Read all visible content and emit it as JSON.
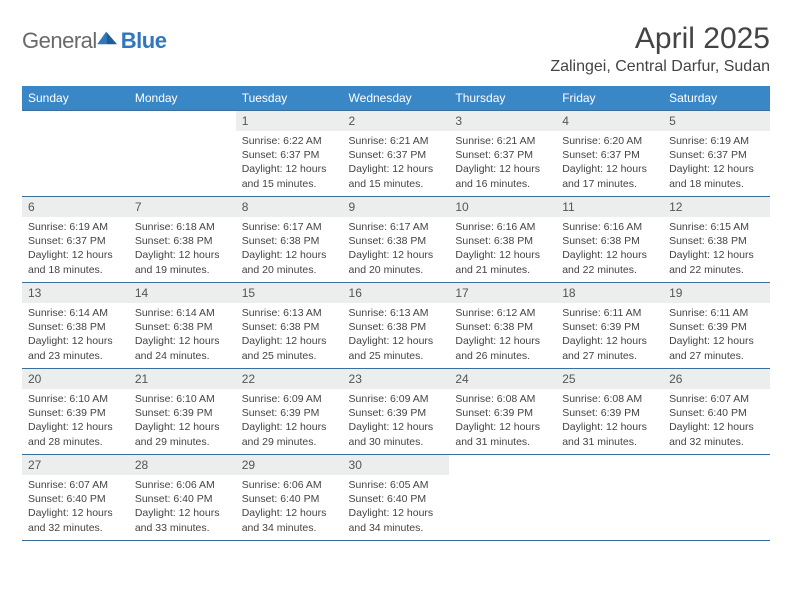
{
  "brand": {
    "word1": "General",
    "word2": "Blue"
  },
  "title": "April 2025",
  "location": "Zalingei, Central Darfur, Sudan",
  "colors": {
    "header_bg": "#3a87c8",
    "header_text": "#ffffff",
    "rule": "#3a6e9c",
    "daynum_bg": "#eceded",
    "body_text": "#444444",
    "logo_gray": "#6a6a6a",
    "logo_blue": "#2f78bd",
    "page_bg": "#ffffff"
  },
  "typography": {
    "title_fontsize": 30,
    "location_fontsize": 16,
    "dow_fontsize": 12,
    "daynum_fontsize": 12,
    "body_fontsize": 10.5
  },
  "days_of_week": [
    "Sunday",
    "Monday",
    "Tuesday",
    "Wednesday",
    "Thursday",
    "Friday",
    "Saturday"
  ],
  "weeks": [
    [
      null,
      null,
      {
        "n": "1",
        "sr": "6:22 AM",
        "ss": "6:37 PM",
        "dl": "12 hours and 15 minutes."
      },
      {
        "n": "2",
        "sr": "6:21 AM",
        "ss": "6:37 PM",
        "dl": "12 hours and 15 minutes."
      },
      {
        "n": "3",
        "sr": "6:21 AM",
        "ss": "6:37 PM",
        "dl": "12 hours and 16 minutes."
      },
      {
        "n": "4",
        "sr": "6:20 AM",
        "ss": "6:37 PM",
        "dl": "12 hours and 17 minutes."
      },
      {
        "n": "5",
        "sr": "6:19 AM",
        "ss": "6:37 PM",
        "dl": "12 hours and 18 minutes."
      }
    ],
    [
      {
        "n": "6",
        "sr": "6:19 AM",
        "ss": "6:37 PM",
        "dl": "12 hours and 18 minutes."
      },
      {
        "n": "7",
        "sr": "6:18 AM",
        "ss": "6:38 PM",
        "dl": "12 hours and 19 minutes."
      },
      {
        "n": "8",
        "sr": "6:17 AM",
        "ss": "6:38 PM",
        "dl": "12 hours and 20 minutes."
      },
      {
        "n": "9",
        "sr": "6:17 AM",
        "ss": "6:38 PM",
        "dl": "12 hours and 20 minutes."
      },
      {
        "n": "10",
        "sr": "6:16 AM",
        "ss": "6:38 PM",
        "dl": "12 hours and 21 minutes."
      },
      {
        "n": "11",
        "sr": "6:16 AM",
        "ss": "6:38 PM",
        "dl": "12 hours and 22 minutes."
      },
      {
        "n": "12",
        "sr": "6:15 AM",
        "ss": "6:38 PM",
        "dl": "12 hours and 22 minutes."
      }
    ],
    [
      {
        "n": "13",
        "sr": "6:14 AM",
        "ss": "6:38 PM",
        "dl": "12 hours and 23 minutes."
      },
      {
        "n": "14",
        "sr": "6:14 AM",
        "ss": "6:38 PM",
        "dl": "12 hours and 24 minutes."
      },
      {
        "n": "15",
        "sr": "6:13 AM",
        "ss": "6:38 PM",
        "dl": "12 hours and 25 minutes."
      },
      {
        "n": "16",
        "sr": "6:13 AM",
        "ss": "6:38 PM",
        "dl": "12 hours and 25 minutes."
      },
      {
        "n": "17",
        "sr": "6:12 AM",
        "ss": "6:38 PM",
        "dl": "12 hours and 26 minutes."
      },
      {
        "n": "18",
        "sr": "6:11 AM",
        "ss": "6:39 PM",
        "dl": "12 hours and 27 minutes."
      },
      {
        "n": "19",
        "sr": "6:11 AM",
        "ss": "6:39 PM",
        "dl": "12 hours and 27 minutes."
      }
    ],
    [
      {
        "n": "20",
        "sr": "6:10 AM",
        "ss": "6:39 PM",
        "dl": "12 hours and 28 minutes."
      },
      {
        "n": "21",
        "sr": "6:10 AM",
        "ss": "6:39 PM",
        "dl": "12 hours and 29 minutes."
      },
      {
        "n": "22",
        "sr": "6:09 AM",
        "ss": "6:39 PM",
        "dl": "12 hours and 29 minutes."
      },
      {
        "n": "23",
        "sr": "6:09 AM",
        "ss": "6:39 PM",
        "dl": "12 hours and 30 minutes."
      },
      {
        "n": "24",
        "sr": "6:08 AM",
        "ss": "6:39 PM",
        "dl": "12 hours and 31 minutes."
      },
      {
        "n": "25",
        "sr": "6:08 AM",
        "ss": "6:39 PM",
        "dl": "12 hours and 31 minutes."
      },
      {
        "n": "26",
        "sr": "6:07 AM",
        "ss": "6:40 PM",
        "dl": "12 hours and 32 minutes."
      }
    ],
    [
      {
        "n": "27",
        "sr": "6:07 AM",
        "ss": "6:40 PM",
        "dl": "12 hours and 32 minutes."
      },
      {
        "n": "28",
        "sr": "6:06 AM",
        "ss": "6:40 PM",
        "dl": "12 hours and 33 minutes."
      },
      {
        "n": "29",
        "sr": "6:06 AM",
        "ss": "6:40 PM",
        "dl": "12 hours and 34 minutes."
      },
      {
        "n": "30",
        "sr": "6:05 AM",
        "ss": "6:40 PM",
        "dl": "12 hours and 34 minutes."
      },
      null,
      null,
      null
    ]
  ],
  "labels": {
    "sunrise": "Sunrise:",
    "sunset": "Sunset:",
    "daylight": "Daylight:"
  }
}
